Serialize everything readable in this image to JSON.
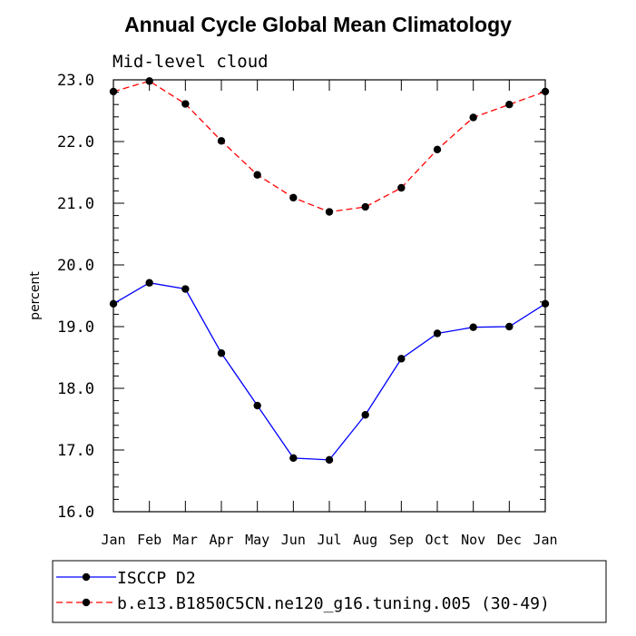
{
  "chart_data": {
    "type": "line",
    "title": "Annual Cycle Global Mean Climatology",
    "subtitle": "Mid-level cloud",
    "xlabel": "",
    "ylabel": "percent",
    "ylim": [
      16.0,
      23.0
    ],
    "y_ticks": [
      "16.0",
      "17.0",
      "18.0",
      "19.0",
      "20.0",
      "21.0",
      "22.0",
      "23.0"
    ],
    "categories": [
      "Jan",
      "Feb",
      "Mar",
      "Apr",
      "May",
      "Jun",
      "Jul",
      "Aug",
      "Sep",
      "Oct",
      "Nov",
      "Dec",
      "Jan"
    ],
    "grid": false,
    "legend_position": "bottom",
    "series": [
      {
        "name": "ISCCP D2",
        "color": "#0000ff",
        "dash": "solid",
        "values": [
          19.37,
          19.71,
          19.61,
          18.57,
          17.72,
          16.87,
          16.84,
          17.57,
          18.48,
          18.89,
          18.99,
          19.0,
          19.37
        ]
      },
      {
        "name": "b.e13.B1850C5CN.ne120_g16.tuning.005 (30-49)",
        "color": "#ff0000",
        "dash": "dashed",
        "values": [
          22.81,
          22.98,
          22.61,
          22.01,
          21.46,
          21.09,
          20.86,
          20.94,
          21.25,
          21.87,
          22.39,
          22.6,
          22.81
        ]
      }
    ]
  }
}
